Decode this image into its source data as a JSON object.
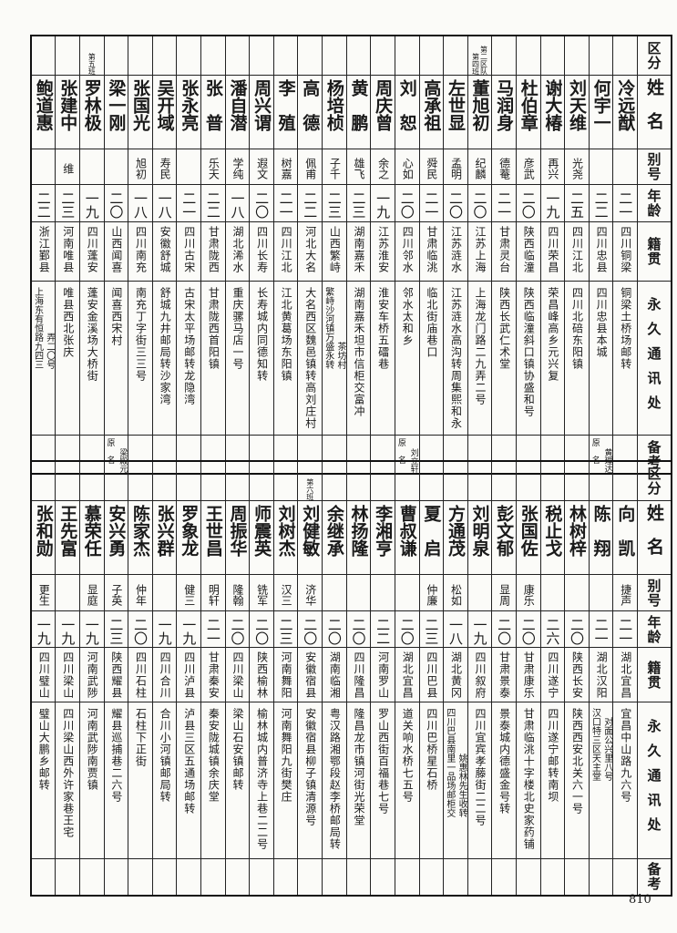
{
  "headers": [
    "区分",
    "姓名",
    "别号",
    "年龄",
    "籍贯",
    "永久通讯处",
    "备考"
  ],
  "top": {
    "columns": [
      {
        "section": "",
        "name": "冷远猷",
        "alias": "",
        "age": "二一",
        "native": "四川铜梁",
        "address": [
          "铜梁土桥场邮转"
        ],
        "note": null
      },
      {
        "section": "",
        "name": "何宇一",
        "alias": "",
        "age": "二二",
        "native": "四川忠县",
        "address": [
          "四川忠县本城"
        ],
        "note": {
          "label": "原名",
          "name": "黄理达"
        }
      },
      {
        "section": "",
        "name": "刘天维",
        "alias": "光尧",
        "age": "二五",
        "native": "四川江北",
        "address": [
          "四川北碚东阳镇"
        ],
        "note": null
      },
      {
        "section": "",
        "name": "谢大椿",
        "alias": "再兴",
        "age": "一九",
        "native": "四川荣昌",
        "address": [
          "荣昌峰高乡元兴复"
        ],
        "note": null
      },
      {
        "section": "",
        "name": "杜伯章",
        "alias": "彦武",
        "age": "二〇",
        "native": "陕西临潼",
        "address": [
          "陕西临潼斜口镇协盛和号"
        ],
        "note": null
      },
      {
        "section": "",
        "name": "马润身",
        "alias": "德菴",
        "age": "二一",
        "native": "甘肃灵台",
        "address": [
          "陕西长武仁术堂"
        ],
        "note": null
      },
      {
        "section": "第二区队第四班",
        "name": "董旭初",
        "alias": "纪麟",
        "age": "二〇",
        "native": "江苏上海",
        "address": [
          "上海龙门路二九弄二号"
        ],
        "note": null
      },
      {
        "section": "",
        "name": "左世显",
        "alias": "孟明",
        "age": "二〇",
        "native": "江苏涟水",
        "address": [
          "江苏涟水高沟转周集熙和永"
        ],
        "note": null
      },
      {
        "section": "",
        "name": "高承祖",
        "alias": "舜民",
        "age": "二一",
        "native": "甘肃临洮",
        "address": [
          "临北街庙巷口"
        ],
        "note": null
      },
      {
        "section": "",
        "name": "刘恕",
        "alias": "心如",
        "age": "二〇",
        "native": "四川邻水",
        "address": [
          "邻水太和乡"
        ],
        "note": {
          "label": "原名",
          "name": "刘立轩"
        }
      },
      {
        "section": "",
        "name": "周庆曾",
        "alias": "余之",
        "age": "一九",
        "native": "江苏淮安",
        "address": [
          "淮安车桥五礌巷"
        ],
        "note": null
      },
      {
        "section": "",
        "name": "黄鹏",
        "alias": "雄飞",
        "age": "二三",
        "native": "湖南嘉禾",
        "address": [
          "湖南嘉禾坦市信柜交富冲"
        ],
        "note": null
      },
      {
        "section": "",
        "name": "杨培桢",
        "alias": "子千",
        "age": "二三",
        "native": "山西繁峙",
        "address": [
          "繁峙沙河镇万盛永转",
          "茶坊村"
        ],
        "note": null
      },
      {
        "section": "",
        "name": "高德",
        "alias": "佩甫",
        "age": "二二",
        "native": "河北大名",
        "address": [
          "大名西区魏邑镇转高刘庄村"
        ],
        "note": null
      },
      {
        "section": "",
        "name": "李殖",
        "alias": "树嘉",
        "age": "二一",
        "native": "四川江北",
        "address": [
          "江北黄葛场东阳镇"
        ],
        "note": null
      },
      {
        "section": "",
        "name": "周兴谓",
        "alias": "遐文",
        "age": "二〇",
        "native": "四川长寿",
        "address": [
          "长寿城内同德知转"
        ],
        "note": null
      },
      {
        "section": "",
        "name": "潘自潜",
        "alias": "学纯",
        "age": "一八",
        "native": "湖北浠水",
        "address": [
          "重庆骡马店一号"
        ],
        "note": null
      },
      {
        "section": "",
        "name": "张普",
        "alias": "乐天",
        "age": "二二",
        "native": "甘肃陇西",
        "address": [
          "甘肃陇西首阳镇"
        ],
        "note": null
      },
      {
        "section": "",
        "name": "张永亮",
        "alias": "",
        "age": "二一",
        "native": "四川古宋",
        "address": [
          "古宋太平场邮转龙隐湾"
        ],
        "note": null
      },
      {
        "section": "",
        "name": "吴开域",
        "alias": "寿民",
        "age": "一八",
        "native": "安徽舒城",
        "address": [
          "舒城九井邮局转沙家湾"
        ],
        "note": null
      },
      {
        "section": "",
        "name": "张国光",
        "alias": "旭初",
        "age": "一八",
        "native": "四川南充",
        "address": [
          "南充丁字街三三号"
        ],
        "note": null
      },
      {
        "section": "",
        "name": "梁一刚",
        "alias": "",
        "age": "二〇",
        "native": "山西闻喜",
        "address": [
          "闻喜西宋村"
        ],
        "note": {
          "label": "原名",
          "name": "梁殿元"
        }
      },
      {
        "section": "第五班",
        "name": "罗林极",
        "alias": "",
        "age": "一九",
        "native": "四川蓬安",
        "address": [
          "蓬安金溪场大桥街"
        ],
        "note": null
      },
      {
        "section": "",
        "name": "张建中",
        "alias": "维",
        "age": "二三",
        "native": "河南唯县",
        "address": [
          "唯县西北张庆"
        ],
        "note": null
      },
      {
        "section": "",
        "name": "鲍道惠",
        "alias": "",
        "age": "二二",
        "native": "浙江鄞县",
        "address": [
          "上海东有恒路九四三",
          "弄二〇号"
        ],
        "note": null
      }
    ]
  },
  "bottom": {
    "columns": [
      {
        "section": "",
        "name": "向凯",
        "alias": "捷声",
        "age": "二一",
        "native": "湖北宜昌",
        "address": [
          "宜昌中山路九六号"
        ],
        "note": null
      },
      {
        "section": "",
        "name": "陈翔",
        "alias": "",
        "age": "二一",
        "native": "湖北汉阳",
        "address": [
          "汉口特三区天主堂",
          "对面公兴里八号"
        ],
        "note": null
      },
      {
        "section": "",
        "name": "林树梓",
        "alias": "",
        "age": "二〇",
        "native": "陕西长安",
        "address": [
          "陕西西安北关六一号"
        ],
        "note": null
      },
      {
        "section": "",
        "name": "税止戈",
        "alias": "",
        "age": "二六",
        "native": "四川遂宁",
        "address": [
          "四川遂宁邮转南坝"
        ],
        "note": null
      },
      {
        "section": "",
        "name": "张国佐",
        "alias": "康乐",
        "age": "二〇",
        "native": "甘肃康乐",
        "address": [
          "甘肃临洮十字楼北史家药铺"
        ],
        "note": null
      },
      {
        "section": "",
        "name": "彭文郁",
        "alias": "显周",
        "age": "二〇",
        "native": "甘肃景泰",
        "address": [
          "景泰城内德盛金号转"
        ],
        "note": null
      },
      {
        "section": "",
        "name": "刘明泉",
        "alias": "",
        "age": "一九",
        "native": "四川叙府",
        "address": [
          "四川宜宾孝藤街二二号"
        ],
        "note": null
      },
      {
        "section": "",
        "name": "方通茂",
        "alias": "松如",
        "age": "一八",
        "native": "湖北黄冈",
        "address": [
          "四川巴县南里一品场邮柜交",
          "姚惠林先生收转"
        ],
        "note": null
      },
      {
        "section": "",
        "name": "夏启",
        "alias": "仲廉",
        "age": "二三",
        "native": "四川巴县",
        "address": [
          "四川巴桥星石桥"
        ],
        "note": null
      },
      {
        "section": "",
        "name": "曹叔谦",
        "alias": "",
        "age": "二〇",
        "native": "湖北宜昌",
        "address": [
          "道关响水桥七五号"
        ],
        "note": null
      },
      {
        "section": "",
        "name": "李湘亨",
        "alias": "",
        "age": "二二",
        "native": "河南罗山",
        "address": [
          "罗山西街百福巷七号"
        ],
        "note": null
      },
      {
        "section": "",
        "name": "林扬隆",
        "alias": "",
        "age": "二〇",
        "native": "四川隆昌",
        "address": [
          "隆昌龙市镇河街光荣堂"
        ],
        "note": null
      },
      {
        "section": "",
        "name": "余继承",
        "alias": "",
        "age": "二〇",
        "native": "湖南临湘",
        "address": [
          "粤汉路湘鄂段赵李桥邮局转"
        ],
        "note": null
      },
      {
        "section": "第六班",
        "name": "刘健敏",
        "alias": "济华",
        "age": "二〇",
        "native": "安徽宿县",
        "address": [
          "安徽宿县柳子镇清源号"
        ],
        "note": null
      },
      {
        "section": "",
        "name": "刘树杰",
        "alias": "汉三",
        "age": "二三",
        "native": "河南舞阳",
        "address": [
          "河南舞阳九街樊庄"
        ],
        "note": null
      },
      {
        "section": "",
        "name": "师震英",
        "alias": "铣军",
        "age": "二〇",
        "native": "陕西榆林",
        "address": [
          "榆林城内普济寺上巷二二号"
        ],
        "note": null
      },
      {
        "section": "",
        "name": "周振华",
        "alias": "隆翰",
        "age": "二〇",
        "native": "四川梁山",
        "address": [
          "梁山石安镇邮转"
        ],
        "note": null
      },
      {
        "section": "",
        "name": "王世昌",
        "alias": "明轩",
        "age": "二一",
        "native": "甘肃秦安",
        "address": [
          "秦安陇城镇余庆堂"
        ],
        "note": null
      },
      {
        "section": "",
        "name": "罗象龙",
        "alias": "健三",
        "age": "一九",
        "native": "四川泸县",
        "address": [
          "泸县三区五通场邮转"
        ],
        "note": null
      },
      {
        "section": "",
        "name": "张兴群",
        "alias": "",
        "age": "一九",
        "native": "四川合川",
        "address": [
          "合川小河镇邮局转"
        ],
        "note": null
      },
      {
        "section": "",
        "name": "陈家杰",
        "alias": "仲年",
        "age": "二〇",
        "native": "四川石柱",
        "address": [
          "石柱下正街"
        ],
        "note": null
      },
      {
        "section": "",
        "name": "安兴勇",
        "alias": "子英",
        "age": "二三",
        "native": "陕西耀县",
        "address": [
          "耀县巡捕巷二六号"
        ],
        "note": null
      },
      {
        "section": "",
        "name": "慕荣任",
        "alias": "显庭",
        "age": "一九",
        "native": "河南武陟",
        "address": [
          "河南武陟南贾镇"
        ],
        "note": null
      },
      {
        "section": "",
        "name": "王先富",
        "alias": "",
        "age": "一九",
        "native": "四川梁山",
        "address": [
          "四川梁山西外许家巷王宅"
        ],
        "note": null
      },
      {
        "section": "",
        "name": "张和勋",
        "alias": "更生",
        "age": "一九",
        "native": "四川璧山",
        "address": [
          "璧山大鹏乡邮转"
        ],
        "note": null
      }
    ]
  },
  "page_number": "810"
}
